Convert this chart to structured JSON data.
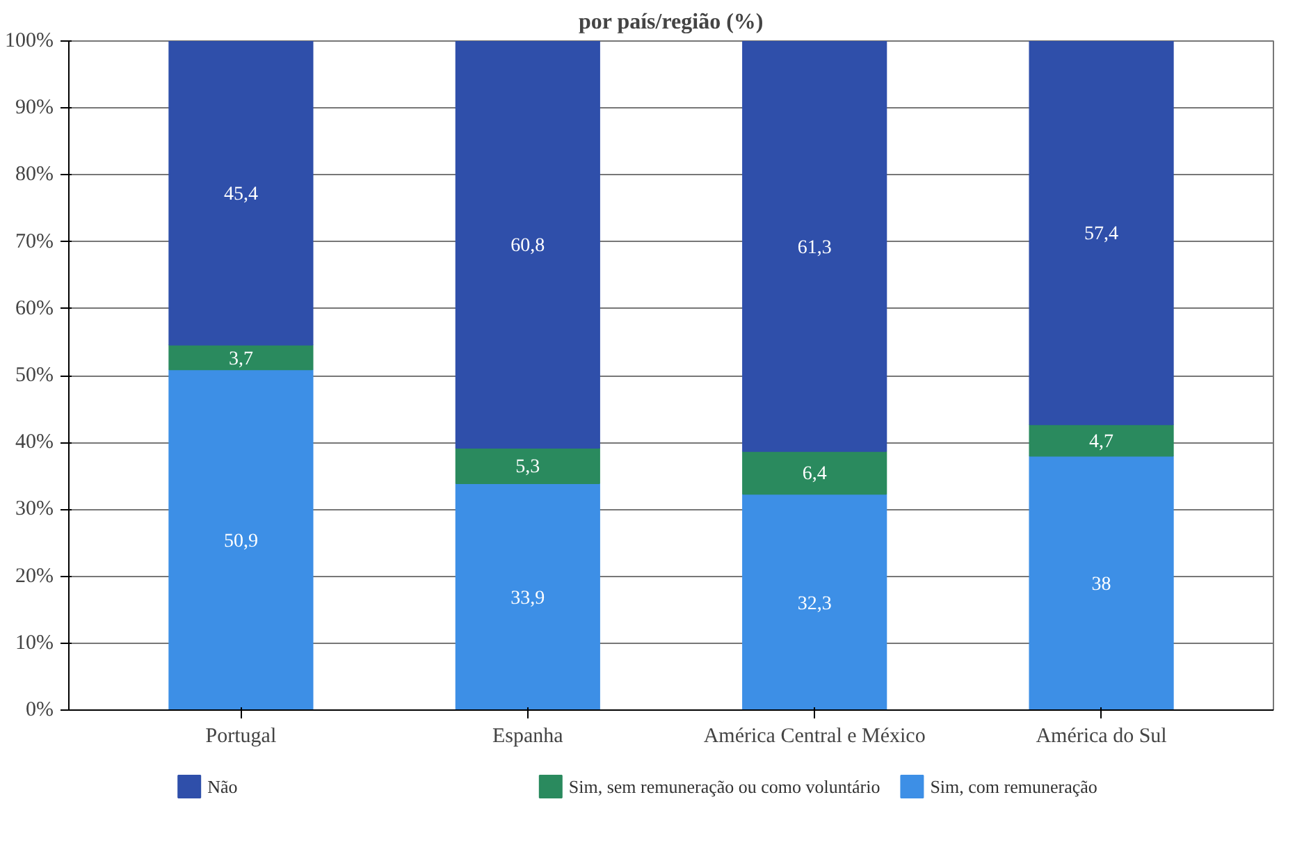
{
  "chart_data": {
    "type": "bar",
    "stacked": true,
    "title": "por país/região (%)",
    "categories": [
      "Portugal",
      "Espanha",
      "América Central e México",
      "América do Sul"
    ],
    "series": [
      {
        "name": "Sim, com remuneração",
        "color": "#3d8fe6",
        "values": [
          50.9,
          33.9,
          32.3,
          38
        ],
        "value_labels": [
          "50,9",
          "33,9",
          "32,3",
          "38"
        ]
      },
      {
        "name": "Sim, sem remuneração ou como voluntário",
        "color": "#2a8a5e",
        "values": [
          3.7,
          5.3,
          6.4,
          4.7
        ],
        "value_labels": [
          "3,7",
          "5,3",
          "6,4",
          "4,7"
        ]
      },
      {
        "name": "Não",
        "color": "#2f4faa",
        "values": [
          45.4,
          60.8,
          61.3,
          57.4
        ],
        "value_labels": [
          "45,4",
          "60,8",
          "61,3",
          "57,4"
        ]
      }
    ],
    "ylim": [
      0,
      100
    ],
    "yticks": [
      {
        "value": 0,
        "label": "0%"
      },
      {
        "value": 10,
        "label": "10%"
      },
      {
        "value": 20,
        "label": "20%"
      },
      {
        "value": 30,
        "label": "30%"
      },
      {
        "value": 40,
        "label": "40%"
      },
      {
        "value": 50,
        "label": "50%"
      },
      {
        "value": 60,
        "label": "60%"
      },
      {
        "value": 70,
        "label": "70%"
      },
      {
        "value": 80,
        "label": "80%"
      },
      {
        "value": 90,
        "label": "90%"
      },
      {
        "value": 100,
        "label": "100%"
      }
    ],
    "grid": "y",
    "legend": "bottom"
  }
}
